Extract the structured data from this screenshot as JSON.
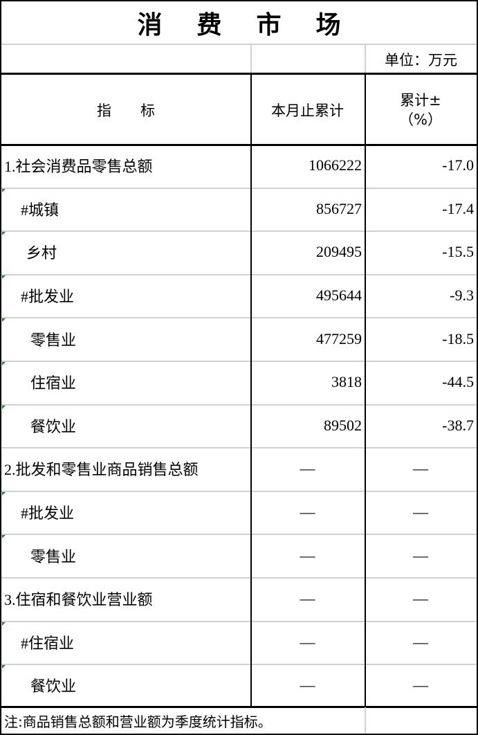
{
  "title": "消费市场",
  "unit": "单位：万元",
  "headers": {
    "indicator": "指　　标",
    "cumulative": "本月止累计",
    "growth_line1": "累计±",
    "growth_line2": "（%）"
  },
  "rows": [
    {
      "label": "1.社会消费品零售总额",
      "value": "1066222",
      "growth": "-17.0",
      "indent": 0,
      "marker": false
    },
    {
      "label": "#城镇",
      "value": "856727",
      "growth": "-17.4",
      "indent": 1,
      "marker": true
    },
    {
      "label": "乡村",
      "value": "209495",
      "growth": "-15.5",
      "indent": 2,
      "marker": true
    },
    {
      "label": "#批发业",
      "value": "495644",
      "growth": "-9.3",
      "indent": 1,
      "marker": true
    },
    {
      "label": "零售业",
      "value": "477259",
      "growth": "-18.5",
      "indent": 3,
      "marker": true
    },
    {
      "label": "住宿业",
      "value": "3818",
      "growth": "-44.5",
      "indent": 3,
      "marker": true
    },
    {
      "label": "餐饮业",
      "value": "89502",
      "growth": "-38.7",
      "indent": 3,
      "marker": true
    },
    {
      "label": "2.批发和零售业商品销售总额",
      "value": "—",
      "growth": "—",
      "indent": 0,
      "marker": false
    },
    {
      "label": "#批发业",
      "value": "—",
      "growth": "—",
      "indent": 1,
      "marker": true
    },
    {
      "label": "零售业",
      "value": "—",
      "growth": "—",
      "indent": 3,
      "marker": true
    },
    {
      "label": "3.住宿和餐饮业营业额",
      "value": "—",
      "growth": "—",
      "indent": 0,
      "marker": false
    },
    {
      "label": "#住宿业",
      "value": "—",
      "growth": "—",
      "indent": 1,
      "marker": true
    },
    {
      "label": "餐饮业",
      "value": "—",
      "growth": "—",
      "indent": 3,
      "marker": true
    }
  ],
  "note": "注:商品销售总额和营业额为季度统计指标。"
}
